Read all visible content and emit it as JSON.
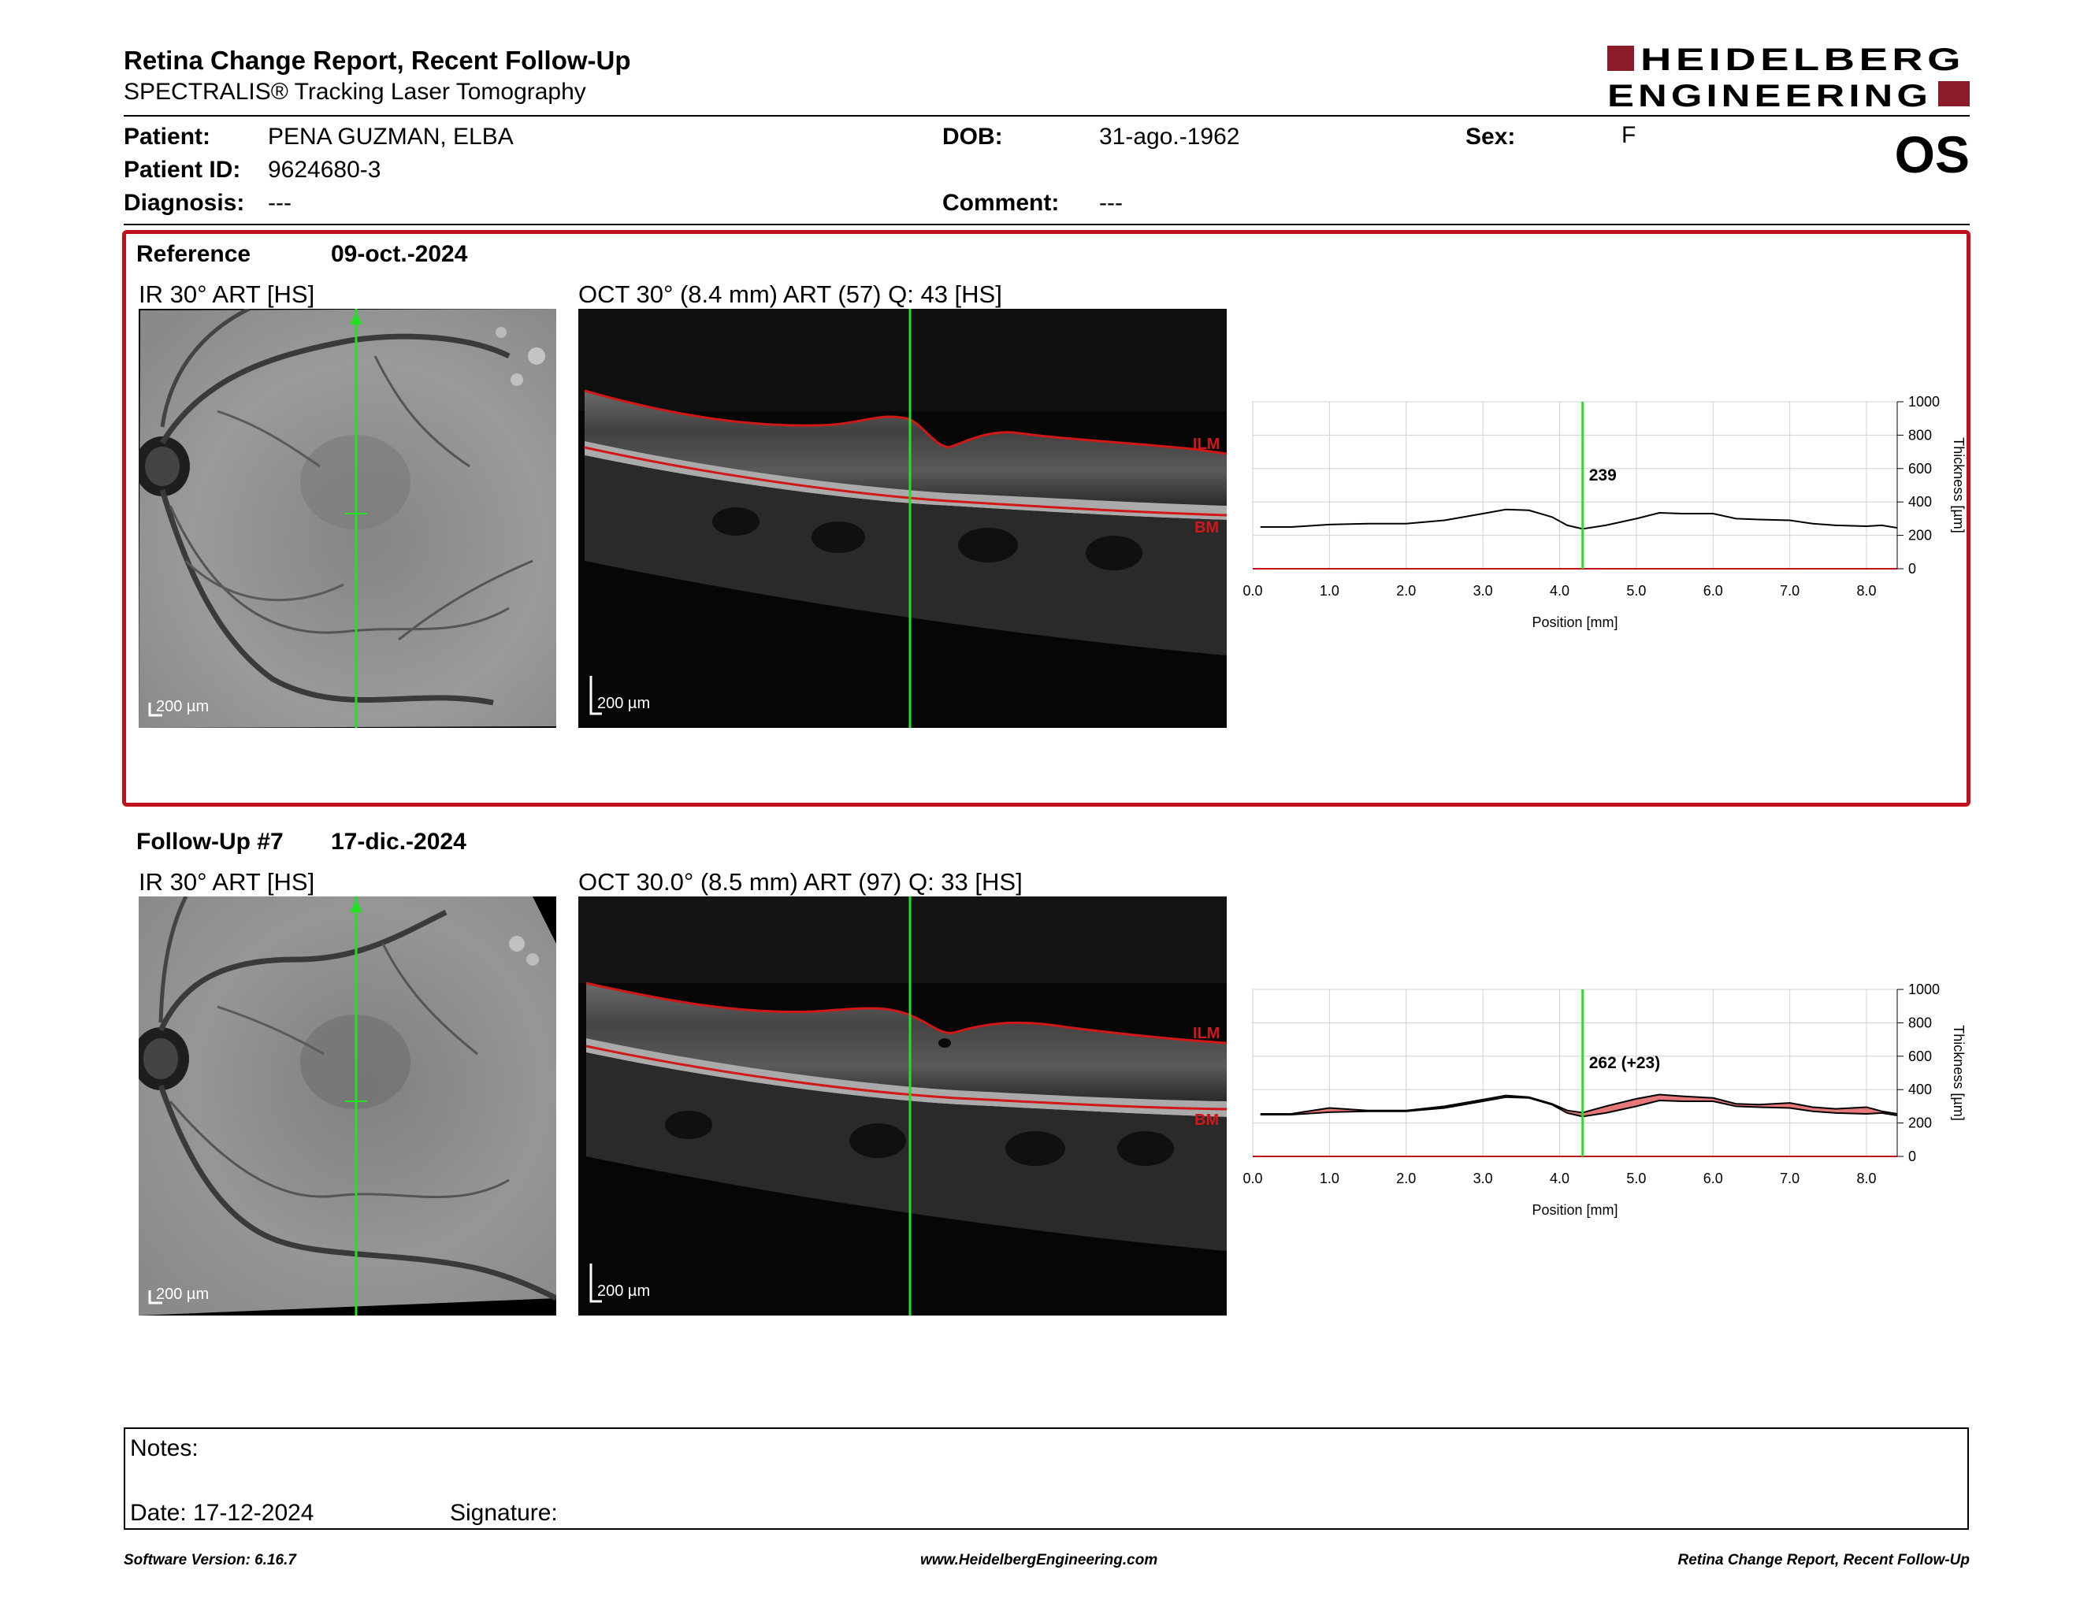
{
  "report": {
    "title": "Retina Change Report, Recent Follow-Up",
    "subtitle": "SPECTRALIS® Tracking Laser Tomography",
    "eye": "OS"
  },
  "logo": {
    "line1": "HEIDELBERG",
    "line2": "ENGINEERING",
    "color": "#8b1a2b"
  },
  "patient": {
    "patient_label": "Patient:",
    "patient_value": "PENA GUZMAN, ELBA",
    "id_label": "Patient ID:",
    "id_value": "9624680-3",
    "diagnosis_label": "Diagnosis:",
    "diagnosis_value": "---",
    "dob_label": "DOB:",
    "dob_value": "31-ago.-1962",
    "comment_label": "Comment:",
    "comment_value": "---",
    "sex_label": "Sex:",
    "sex_value": "F"
  },
  "reference": {
    "label": "Reference",
    "date": "09-oct.-2024",
    "ir_caption": "IR 30° ART [HS]",
    "oct_caption": "OCT 30° (8.4 mm) ART (57) Q: 43 [HS]",
    "ir_scale": "200 µm",
    "oct_scale": "200 µm",
    "ilm": "ILM",
    "bm": "BM"
  },
  "followup": {
    "label": "Follow-Up #7",
    "date": "17-dic.-2024",
    "ir_caption": "IR 30° ART [HS]",
    "oct_caption": "OCT 30.0° (8.5 mm) ART (97) Q: 33 [HS]",
    "ir_scale": "200 µm",
    "oct_scale": "200 µm",
    "ilm": "ILM",
    "bm": "BM"
  },
  "chart_data": [
    {
      "type": "line",
      "xlabel": "Position [mm]",
      "ylabel": "Thickness [µm]",
      "xlim": [
        0,
        8.4
      ],
      "ylim": [
        0,
        1000
      ],
      "xticks": [
        "0.0",
        "1.0",
        "2.0",
        "3.0",
        "4.0",
        "5.0",
        "6.0",
        "7.0",
        "8.0"
      ],
      "yticks": [
        "0",
        "200",
        "400",
        "600",
        "800",
        "1000"
      ],
      "cursor_x": 4.3,
      "cursor_label": "239",
      "series": [
        {
          "x": [
            0.1,
            0.5,
            1.0,
            1.5,
            2.0,
            2.5,
            3.0,
            3.3,
            3.6,
            3.9,
            4.1,
            4.3,
            4.6,
            5.0,
            5.3,
            5.6,
            6.0,
            6.3,
            6.6,
            7.0,
            7.3,
            7.6,
            8.0,
            8.2,
            8.4
          ],
          "y": [
            250,
            250,
            265,
            270,
            270,
            290,
            330,
            355,
            350,
            310,
            260,
            239,
            260,
            300,
            335,
            330,
            330,
            300,
            295,
            290,
            270,
            260,
            255,
            260,
            245
          ]
        }
      ]
    },
    {
      "type": "area",
      "xlabel": "Position [mm]",
      "ylabel": "Thickness [µm]",
      "xlim": [
        0,
        8.4
      ],
      "ylim": [
        0,
        1000
      ],
      "xticks": [
        "0.0",
        "1.0",
        "2.0",
        "3.0",
        "4.0",
        "5.0",
        "6.0",
        "7.0",
        "8.0"
      ],
      "yticks": [
        "0",
        "200",
        "400",
        "600",
        "800",
        "1000"
      ],
      "cursor_x": 4.3,
      "cursor_label": "262 (+23)",
      "series": [
        {
          "x": [
            0.1,
            0.5,
            1.0,
            1.5,
            2.0,
            2.5,
            3.0,
            3.3,
            3.6,
            3.9,
            4.1,
            4.3,
            4.6,
            5.0,
            5.3,
            5.6,
            6.0,
            6.3,
            6.6,
            7.0,
            7.3,
            7.6,
            8.0,
            8.2,
            8.4
          ],
          "y": [
            250,
            250,
            265,
            270,
            270,
            290,
            330,
            355,
            350,
            310,
            260,
            239,
            260,
            300,
            335,
            330,
            330,
            300,
            295,
            290,
            270,
            260,
            255,
            260,
            245
          ]
        },
        {
          "x": [
            0.1,
            0.5,
            1.0,
            1.5,
            2.0,
            2.5,
            3.0,
            3.3,
            3.6,
            3.9,
            4.1,
            4.3,
            4.6,
            5.0,
            5.3,
            5.6,
            6.0,
            6.3,
            6.6,
            7.0,
            7.3,
            7.6,
            8.0,
            8.2,
            8.4
          ],
          "y": [
            255,
            255,
            290,
            275,
            275,
            300,
            340,
            365,
            355,
            315,
            275,
            262,
            300,
            345,
            370,
            360,
            350,
            315,
            310,
            320,
            295,
            285,
            295,
            270,
            255
          ]
        }
      ],
      "colors": {
        "increase": "#e06060",
        "decrease": "#60a060"
      }
    }
  ],
  "notes": {
    "notes_label": "Notes:",
    "date_label": "Date: 17-12-2024",
    "signature_label": "Signature:"
  },
  "footer": {
    "left": "Software Version: 6.16.7",
    "center": "www.HeidelbergEngineering.com",
    "right": "Retina Change Report, Recent Follow-Up"
  },
  "colors": {
    "accent_red": "#c0121c",
    "cursor_green": "#22e022",
    "segmentation_red": "#d01818"
  }
}
